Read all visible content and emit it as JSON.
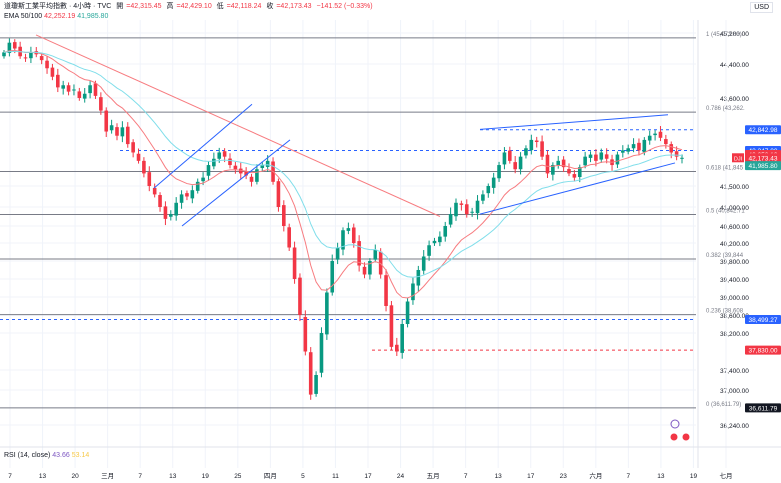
{
  "header": {
    "symbol": "道瓊斯工業平均指數 · 4小時 · TVC",
    "open_label": "開",
    "open": "=42,315.45",
    "high_label": "高",
    "high": "=42,429.10",
    "low_label": "低",
    "low": "=42,118.24",
    "close_label": "收",
    "close": "=42,173.43",
    "change": "−141.52 (−0.33%)"
  },
  "ema": {
    "label": "EMA 50/100",
    "v1": "42,252.19",
    "v2": "41,985.80",
    "c1": "#f23645",
    "c2": "#4dd0e1"
  },
  "currency": "USD",
  "rsi": {
    "label": "RSI (14, close)",
    "v1": "43.66",
    "v2": "53.14"
  },
  "colors": {
    "up": "#089981",
    "down": "#f23645",
    "ema50": "#f77c80",
    "ema100": "#80deea",
    "fib": "#787b86",
    "trend": "#2962ff"
  },
  "chart_data": {
    "type": "candlestick",
    "yaxis": {
      "ticks": [
        "45,200.00",
        "44,400.00",
        "43,600.00",
        "41,500.00",
        "41,000.00",
        "40,600.00",
        "40,200.00",
        "39,800.00",
        "39,400.00",
        "39,000.00",
        "38,600.00",
        "38,200.00",
        "37,400.00",
        "37,000.00",
        "36,240.00"
      ],
      "tick_values": [
        45200,
        44400,
        43600,
        41500,
        41000,
        40600,
        40200,
        39800,
        39400,
        39000,
        38600,
        38200,
        37400,
        37000,
        36240
      ]
    },
    "xaxis": {
      "labels": [
        "7",
        "13",
        "20",
        "三月",
        "7",
        "13",
        "19",
        "25",
        "四月",
        "5",
        "11",
        "17",
        "24",
        "五月",
        "7",
        "13",
        "17",
        "23",
        "六月",
        "7",
        "13",
        "19",
        "七月"
      ]
    },
    "fib_levels": [
      {
        "label": "1 (45,073.63)",
        "value": 45073.63
      },
      {
        "label": "0.786 (43,262.",
        "value": 43262
      },
      {
        "label": "0.618 (41,845",
        "value": 41845
      },
      {
        "label": "0.5 (40,842.71",
        "value": 40842.71
      },
      {
        "label": "0.382 (39,844",
        "value": 39844
      },
      {
        "label": "0.236 (38,608",
        "value": 38608
      },
      {
        "label": "0 (36,611.79)",
        "value": 36611.79
      }
    ],
    "price_tags": [
      {
        "text": "42,842.98",
        "value": 42842.98,
        "color": "#2962ff"
      },
      {
        "text": "42,347.00",
        "value": 42347.0,
        "color": "#2962ff"
      },
      {
        "text": "42,252.19",
        "value": 42252.19,
        "color": "#f23645"
      },
      {
        "text": "42,173.43",
        "value": 42173.43,
        "color": "#f23645"
      },
      {
        "text": "41,985.80",
        "value": 41985.8,
        "color": "#26a69a"
      },
      {
        "text": "38,499.27",
        "value": 38499.27,
        "color": "#2962ff"
      },
      {
        "text": "37,830.00",
        "value": 37830.0,
        "color": "#f23645"
      },
      {
        "text": "36,611.79",
        "value": 36611.79,
        "color": "#131722"
      }
    ],
    "dji_badge": "DJI",
    "closes": [
      44700,
      44950,
      44800,
      44600,
      44550,
      44700,
      44650,
      44500,
      44300,
      44100,
      43850,
      43900,
      43750,
      43800,
      43600,
      43700,
      43900,
      43650,
      43300,
      42800,
      42950,
      42700,
      42900,
      42500,
      42300,
      42100,
      41800,
      41500,
      41300,
      41000,
      40750,
      40850,
      41100,
      41300,
      41250,
      41400,
      41600,
      41700,
      42000,
      42150,
      42300,
      42200,
      42000,
      41900,
      41800,
      41750,
      41600,
      41900,
      42000,
      42100,
      41600,
      41000,
      40600,
      40100,
      39400,
      38600,
      37800,
      36900,
      37300,
      38200,
      39100,
      39800,
      40100,
      40500,
      40550,
      40200,
      39700,
      39500,
      39800,
      40050,
      39500,
      38800,
      37900,
      37800,
      38400,
      38900,
      39300,
      39600,
      39900,
      40150,
      40250,
      40350,
      40600,
      40850,
      41100,
      41050,
      40850,
      40900,
      41150,
      41300,
      41500,
      41700,
      42000,
      42300,
      42100,
      41900,
      42200,
      42400,
      42600,
      42550,
      42200,
      41800,
      42000,
      42100,
      41950,
      41800,
      41700,
      41950,
      42200,
      42250,
      42100,
      42300,
      42150,
      42000,
      42250,
      42350,
      42400,
      42500,
      42350,
      42600,
      42700,
      42750,
      42650,
      42500,
      42300,
      42200,
      42173
    ]
  }
}
